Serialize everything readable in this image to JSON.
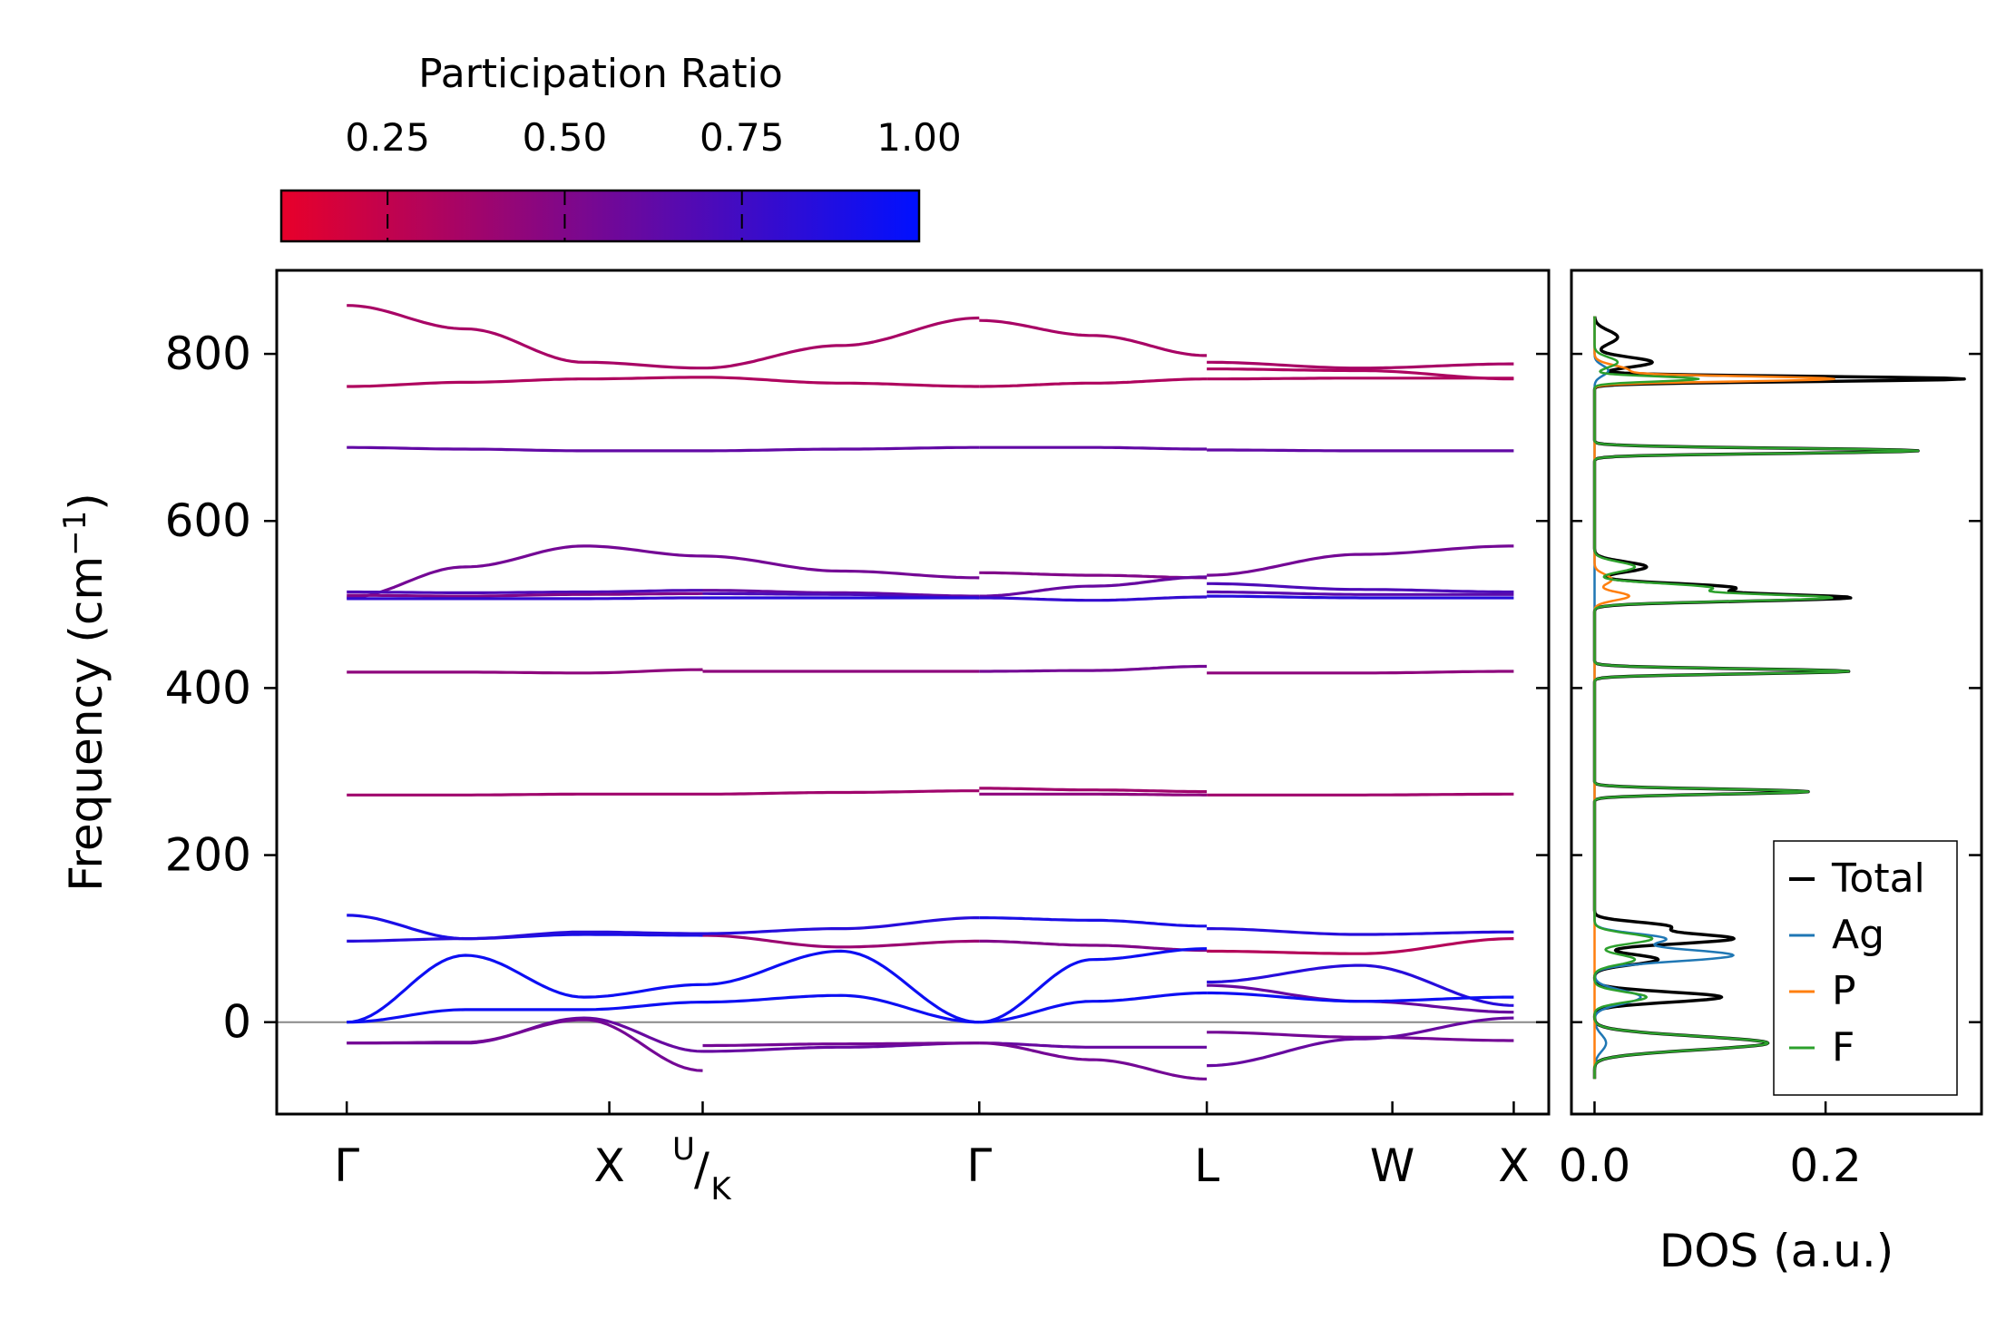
{
  "colors": {
    "cmap_low": "#e8002a",
    "cmap_high": "#0010ff",
    "total": "#000000",
    "ag": "#1f77b4",
    "p": "#ff7f0e",
    "f": "#2ca02c",
    "zero_line": "#888888"
  },
  "colorbar": {
    "title": "Participation Ratio",
    "min": 0.1,
    "max": 1.0,
    "ticks": [
      0.25,
      0.5,
      0.75,
      1.0
    ],
    "tick_labels": [
      "0.25",
      "0.50",
      "0.75",
      "1.00"
    ]
  },
  "chart_data": [
    {
      "type": "line",
      "title": "",
      "xlabel": "",
      "ylabel": "Frequency (cm⁻¹)",
      "ylabel_main": "Frequency (cm",
      "ylabel_sup": "−1",
      "ylabel_close": ")",
      "ylim": [
        -110,
        900
      ],
      "yticks": [
        0,
        200,
        400,
        600,
        800
      ],
      "ytick_labels": [
        "0",
        "200",
        "400",
        "600",
        "800"
      ],
      "xlim": [
        -0.06,
        1.03
      ],
      "kpoints": [
        {
          "x": 0.0,
          "label": "Γ"
        },
        {
          "x": 0.225,
          "label": "X"
        },
        {
          "x": 0.305,
          "label": "U/K",
          "label_top": "U",
          "label_slash": "/",
          "label_bottom": "K"
        },
        {
          "x": 0.542,
          "label": "Γ"
        },
        {
          "x": 0.737,
          "label": "L"
        },
        {
          "x": 0.896,
          "label": "W"
        },
        {
          "x": 1.0,
          "label": "X"
        }
      ],
      "zero_line": 0,
      "segments": [
        {
          "x0": 0.0,
          "x1": 0.305,
          "bands": [
            {
              "y": [
                858,
                830,
                790,
                783
              ],
              "pr": 0.35
            },
            {
              "y": [
                761,
                766,
                770,
                772
              ],
              "pr": 0.32
            },
            {
              "y": [
                688,
                686,
                684,
                684
              ],
              "pr": 0.62
            },
            {
              "y": [
                508,
                545,
                570,
                558
              ],
              "pr": 0.55
            },
            {
              "y": [
                515,
                514,
                515,
                517
              ],
              "pr": 0.7
            },
            {
              "y": [
                511,
                510,
                512,
                513
              ],
              "pr": 0.5
            },
            {
              "y": [
                507,
                507,
                507,
                508
              ],
              "pr": 0.8
            },
            {
              "y": [
                419,
                419,
                418,
                422
              ],
              "pr": 0.45
            },
            {
              "y": [
                272,
                272,
                273,
                273
              ],
              "pr": 0.38
            },
            {
              "y": [
                128,
                100,
                105,
                104
              ],
              "pr": 0.9
            },
            {
              "y": [
                97,
                100,
                108,
                106
              ],
              "pr": 0.85
            },
            {
              "y": [
                0,
                80,
                30,
                45
              ],
              "pr": 0.95
            },
            {
              "y": [
                0,
                15,
                15,
                24
              ],
              "pr": 0.95
            },
            {
              "y": [
                -25,
                -25,
                5,
                -35
              ],
              "pr": 0.6
            },
            {
              "y": [
                -25,
                -24,
                3,
                -58
              ],
              "pr": 0.55
            }
          ]
        },
        {
          "x0": 0.305,
          "x1": 0.542,
          "bands": [
            {
              "y": [
                783,
                810,
                843
              ],
              "pr": 0.35
            },
            {
              "y": [
                772,
                765,
                761
              ],
              "pr": 0.32
            },
            {
              "y": [
                684,
                686,
                688
              ],
              "pr": 0.62
            },
            {
              "y": [
                558,
                540,
                532
              ],
              "pr": 0.55
            },
            {
              "y": [
                517,
                514,
                510
              ],
              "pr": 0.6
            },
            {
              "y": [
                513,
                512,
                508
              ],
              "pr": 0.7
            },
            {
              "y": [
                508,
                508,
                508
              ],
              "pr": 0.85
            },
            {
              "y": [
                420,
                420,
                420
              ],
              "pr": 0.45
            },
            {
              "y": [
                273,
                275,
                277
              ],
              "pr": 0.38
            },
            {
              "y": [
                104,
                90,
                97
              ],
              "pr": 0.4
            },
            {
              "y": [
                106,
                112,
                125
              ],
              "pr": 0.85
            },
            {
              "y": [
                45,
                85,
                0
              ],
              "pr": 0.95
            },
            {
              "y": [
                24,
                32,
                0
              ],
              "pr": 0.95
            },
            {
              "y": [
                -35,
                -30,
                -25
              ],
              "pr": 0.6
            },
            {
              "y": [
                -28,
                -26,
                -25
              ],
              "pr": 0.55
            }
          ]
        },
        {
          "x0": 0.542,
          "x1": 0.737,
          "bands": [
            {
              "y": [
                840,
                822,
                798
              ],
              "pr": 0.35
            },
            {
              "y": [
                761,
                765,
                770
              ],
              "pr": 0.32
            },
            {
              "y": [
                688,
                688,
                686
              ],
              "pr": 0.62
            },
            {
              "y": [
                538,
                535,
                532
              ],
              "pr": 0.5
            },
            {
              "y": [
                510,
                522,
                533
              ],
              "pr": 0.6
            },
            {
              "y": [
                508,
                505,
                509
              ],
              "pr": 0.8
            },
            {
              "y": [
                420,
                421,
                426
              ],
              "pr": 0.55
            },
            {
              "y": [
                280,
                278,
                276
              ],
              "pr": 0.38
            },
            {
              "y": [
                273,
                273,
                272
              ],
              "pr": 0.45
            },
            {
              "y": [
                125,
                122,
                115
              ],
              "pr": 0.9
            },
            {
              "y": [
                97,
                92,
                86
              ],
              "pr": 0.5
            },
            {
              "y": [
                0,
                75,
                88
              ],
              "pr": 0.95
            },
            {
              "y": [
                0,
                25,
                35
              ],
              "pr": 0.95
            },
            {
              "y": [
                -25,
                -30,
                -30
              ],
              "pr": 0.6
            },
            {
              "y": [
                -25,
                -45,
                -68
              ],
              "pr": 0.55
            }
          ]
        },
        {
          "x0": 0.737,
          "x1": 1.0,
          "bands": [
            {
              "y": [
                790,
                783,
                788
              ],
              "pr": 0.35
            },
            {
              "y": [
                782,
                780,
                770
              ],
              "pr": 0.33
            },
            {
              "y": [
                770,
                771,
                771
              ],
              "pr": 0.32
            },
            {
              "y": [
                685,
                684,
                684
              ],
              "pr": 0.62
            },
            {
              "y": [
                535,
                560,
                570
              ],
              "pr": 0.55
            },
            {
              "y": [
                525,
                518,
                515
              ],
              "pr": 0.7
            },
            {
              "y": [
                515,
                512,
                512
              ],
              "pr": 0.65
            },
            {
              "y": [
                510,
                508,
                508
              ],
              "pr": 0.85
            },
            {
              "y": [
                418,
                418,
                420
              ],
              "pr": 0.45
            },
            {
              "y": [
                272,
                272,
                273
              ],
              "pr": 0.38
            },
            {
              "y": [
                112,
                105,
                108
              ],
              "pr": 0.85
            },
            {
              "y": [
                85,
                82,
                100
              ],
              "pr": 0.3
            },
            {
              "y": [
                48,
                68,
                20
              ],
              "pr": 0.85
            },
            {
              "y": [
                44,
                25,
                12
              ],
              "pr": 0.6
            },
            {
              "y": [
                35,
                25,
                30
              ],
              "pr": 0.95
            },
            {
              "y": [
                -12,
                -18,
                -22
              ],
              "pr": 0.55
            },
            {
              "y": [
                -52,
                -20,
                5
              ],
              "pr": 0.6
            }
          ]
        }
      ]
    },
    {
      "type": "line",
      "title": "",
      "xlabel": "DOS (a.u.)",
      "ylabel": "",
      "xlim": [
        -0.02,
        0.335
      ],
      "ylim": [
        -110,
        900
      ],
      "xticks": [
        0.0,
        0.2
      ],
      "xtick_labels": [
        "0.0",
        "0.2"
      ],
      "legend_placement": "lower-right",
      "series": [
        {
          "name": "Total",
          "peaks": [
            [
              -25,
              0.15,
              8
            ],
            [
              30,
              0.11,
              6
            ],
            [
              75,
              0.055,
              6
            ],
            [
              100,
              0.12,
              6
            ],
            [
              115,
              0.06,
              5
            ],
            [
              276,
              0.185,
              3
            ],
            [
              420,
              0.22,
              3
            ],
            [
              508,
              0.215,
              4
            ],
            [
              520,
              0.12,
              5
            ],
            [
              545,
              0.045,
              6
            ],
            [
              684,
              0.28,
              3
            ],
            [
              770,
              0.32,
              3
            ],
            [
              790,
              0.05,
              6
            ],
            [
              820,
              0.02,
              8
            ]
          ]
        },
        {
          "name": "Ag",
          "peaks": [
            [
              -25,
              0.01,
              10
            ],
            [
              30,
              0.04,
              8
            ],
            [
              80,
              0.12,
              7
            ],
            [
              100,
              0.06,
              6
            ],
            [
              780,
              0.012,
              6
            ]
          ]
        },
        {
          "name": "P",
          "peaks": [
            [
              510,
              0.03,
              5
            ],
            [
              530,
              0.015,
              6
            ],
            [
              770,
              0.2,
              3
            ],
            [
              780,
              0.03,
              6
            ]
          ]
        },
        {
          "name": "F",
          "peaks": [
            [
              -25,
              0.15,
              8
            ],
            [
              30,
              0.045,
              6
            ],
            [
              75,
              0.035,
              6
            ],
            [
              100,
              0.05,
              6
            ],
            [
              276,
              0.185,
              3
            ],
            [
              420,
              0.22,
              3
            ],
            [
              508,
              0.2,
              4
            ],
            [
              520,
              0.1,
              5
            ],
            [
              545,
              0.035,
              6
            ],
            [
              684,
              0.28,
              3
            ],
            [
              770,
              0.09,
              3
            ],
            [
              790,
              0.02,
              6
            ]
          ]
        }
      ]
    }
  ]
}
